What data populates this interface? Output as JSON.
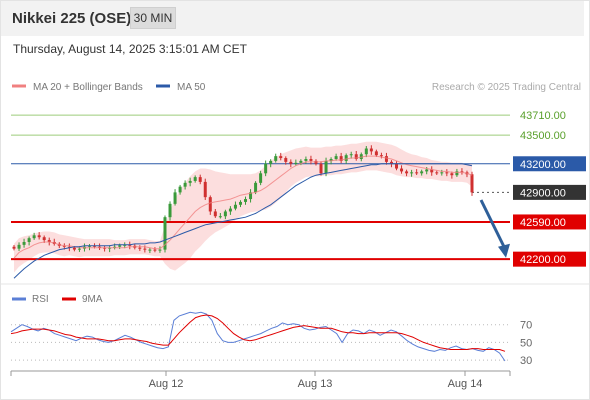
{
  "header": {
    "title": "Nikkei 225 (OSE)",
    "timeframe_button": "30 MIN",
    "timestamp": "Thursday, August 14, 2025 3:15:01 AM CET"
  },
  "legend": {
    "items": [
      {
        "label": "MA 20 + Bollinger Bands",
        "color": "#f08080"
      },
      {
        "label": "MA 50",
        "color": "#2b5aa8"
      }
    ],
    "credit": "Research © 2025 Trading Central"
  },
  "chart_data": [
    {
      "type": "candlestick",
      "title": "",
      "x_ticks": [
        "Aug 12",
        "Aug 13",
        "Aug 14"
      ],
      "y_range": [
        41950,
        43900
      ],
      "levels": [
        {
          "value": 43710,
          "label": "43710.00",
          "style": "green-line"
        },
        {
          "value": 43500,
          "label": "43500.00",
          "style": "green-line"
        },
        {
          "value": 43200,
          "label": "43200.00",
          "style": "blue-line"
        },
        {
          "value": 42900,
          "label": "42900.00",
          "style": "dotted-current"
        },
        {
          "value": 42590,
          "label": "42590.00",
          "style": "red-line"
        },
        {
          "value": 42200,
          "label": "42200.00",
          "style": "red-line"
        }
      ],
      "colors": {
        "up": "#3a9a3a",
        "down": "#d03030",
        "green_line": "#9ccc7a",
        "blue_line": "#2b5aa8",
        "red_line": "#e00000",
        "current_tag": "#333333",
        "band_fill": "#fbd3d3",
        "ma20": "#f08080",
        "ma50": "#2b5aa8",
        "arrow": "#2e5f99"
      },
      "closes": [
        42310,
        42350,
        42380,
        42420,
        42450,
        42430,
        42400,
        42380,
        42360,
        42340,
        42330,
        42320,
        42300,
        42310,
        42330,
        42340,
        42330,
        42320,
        42310,
        42320,
        42330,
        42345,
        42350,
        42340,
        42320,
        42310,
        42300,
        42300,
        42290,
        42300,
        42640,
        42780,
        42900,
        42960,
        43000,
        43020,
        43060,
        43010,
        42850,
        42700,
        42650,
        42650,
        42700,
        42730,
        42770,
        42800,
        42830,
        42900,
        43000,
        43100,
        43200,
        43230,
        43280,
        43260,
        43220,
        43200,
        43210,
        43230,
        43250,
        43230,
        43200,
        43100,
        43230,
        43250,
        43280,
        43230,
        43290,
        43300,
        43250,
        43300,
        43360,
        43330,
        43290,
        43280,
        43220,
        43200,
        43150,
        43120,
        43100,
        43110,
        43100,
        43120,
        43140,
        43110,
        43100,
        43110,
        43100,
        43080,
        43120,
        43110,
        43090,
        42900
      ],
      "ma20": [
        42210,
        42270,
        42300,
        42320,
        42350,
        42370,
        42380,
        42380,
        42370,
        42350,
        42340,
        42340,
        42330,
        42320,
        42320,
        42320,
        42320,
        42320,
        42320,
        42320,
        42320,
        42320,
        42320,
        42330,
        42330,
        42330,
        42330,
        42320,
        42310,
        42310,
        42350,
        42400,
        42460,
        42520,
        42580,
        42640,
        42700,
        42740,
        42770,
        42790,
        42800,
        42810,
        42820,
        42830,
        42850,
        42870,
        42880,
        42890,
        42900,
        42920,
        42950,
        42990,
        43030,
        43070,
        43110,
        43150,
        43180,
        43200,
        43220,
        43220,
        43220,
        43220,
        43230,
        43230,
        43240,
        43240,
        43250,
        43260,
        43260,
        43270,
        43280,
        43280,
        43280,
        43270,
        43260,
        43250,
        43230,
        43210,
        43190,
        43180,
        43170,
        43160,
        43150,
        43140,
        43130,
        43120,
        43120,
        43110,
        43110,
        43110,
        43100,
        43080
      ],
      "ma50": [
        42000,
        42050,
        42100,
        42140,
        42180,
        42210,
        42240,
        42260,
        42280,
        42300,
        42310,
        42320,
        42330,
        42330,
        42340,
        42340,
        42340,
        42340,
        42340,
        42340,
        42350,
        42350,
        42350,
        42350,
        42360,
        42360,
        42360,
        42370,
        42370,
        42380,
        42400,
        42420,
        42440,
        42460,
        42480,
        42500,
        42520,
        42540,
        42560,
        42570,
        42580,
        42590,
        42600,
        42610,
        42620,
        42630,
        42640,
        42660,
        42680,
        42710,
        42740,
        42770,
        42810,
        42850,
        42890,
        42930,
        42970,
        43000,
        43030,
        43060,
        43080,
        43090,
        43100,
        43110,
        43120,
        43130,
        43140,
        43150,
        43160,
        43170,
        43180,
        43190,
        43190,
        43200,
        43200,
        43200,
        43200,
        43200,
        43200,
        43200,
        43200,
        43200,
        43200,
        43200,
        43200,
        43200,
        43200,
        43200,
        43200,
        43200,
        43190,
        43180
      ],
      "bb_halfwidth": [
        150,
        150,
        140,
        130,
        120,
        110,
        110,
        110,
        110,
        110,
        110,
        100,
        100,
        100,
        90,
        90,
        90,
        90,
        90,
        90,
        80,
        80,
        80,
        80,
        80,
        80,
        80,
        80,
        80,
        80,
        200,
        300,
        380,
        400,
        420,
        430,
        420,
        410,
        380,
        350,
        320,
        300,
        280,
        260,
        240,
        220,
        210,
        200,
        200,
        210,
        230,
        240,
        240,
        230,
        210,
        190,
        180,
        170,
        160,
        150,
        150,
        150,
        150,
        150,
        150,
        150,
        150,
        150,
        150,
        150,
        150,
        150,
        150,
        150,
        150,
        150,
        150,
        140,
        130,
        120,
        120,
        110,
        110,
        100,
        100,
        100,
        100,
        100,
        100,
        100,
        100,
        120
      ]
    },
    {
      "type": "line",
      "title": "RSI",
      "series": [
        {
          "name": "RSI",
          "color": "#5b7fd6"
        },
        {
          "name": "9MA",
          "color": "#e00000"
        }
      ],
      "y_ticks": [
        70,
        50,
        30
      ],
      "y_range": [
        20,
        90
      ],
      "rsi": [
        62,
        66,
        70,
        68,
        65,
        63,
        66,
        64,
        60,
        58,
        56,
        54,
        52,
        55,
        57,
        56,
        53,
        51,
        50,
        52,
        55,
        58,
        56,
        53,
        50,
        48,
        46,
        44,
        43,
        45,
        75,
        80,
        82,
        84,
        83,
        84,
        82,
        75,
        60,
        52,
        50,
        50,
        52,
        54,
        56,
        58,
        60,
        63,
        66,
        68,
        72,
        70,
        71,
        70,
        66,
        64,
        65,
        67,
        68,
        64,
        60,
        50,
        60,
        64,
        63,
        60,
        64,
        62,
        58,
        61,
        64,
        62,
        57,
        52,
        48,
        45,
        43,
        41,
        40,
        42,
        41,
        44,
        46,
        43,
        42,
        43,
        41,
        40,
        44,
        42,
        38,
        29
      ],
      "ma9": [
        60,
        61,
        63,
        64,
        65,
        65,
        65,
        64,
        63,
        61,
        59,
        58,
        56,
        55,
        54,
        54,
        54,
        53,
        52,
        52,
        53,
        54,
        54,
        53,
        52,
        51,
        49,
        48,
        47,
        47,
        54,
        61,
        67,
        73,
        78,
        80,
        81,
        80,
        77,
        72,
        66,
        60,
        56,
        53,
        52,
        53,
        55,
        57,
        59,
        61,
        63,
        65,
        67,
        68,
        69,
        68,
        67,
        66,
        66,
        66,
        64,
        62,
        61,
        61,
        60,
        60,
        61,
        61,
        61,
        61,
        61,
        61,
        60,
        58,
        56,
        53,
        50,
        48,
        46,
        44,
        43,
        42,
        42,
        42,
        42,
        43,
        43,
        42,
        42,
        42,
        42,
        40
      ]
    }
  ]
}
